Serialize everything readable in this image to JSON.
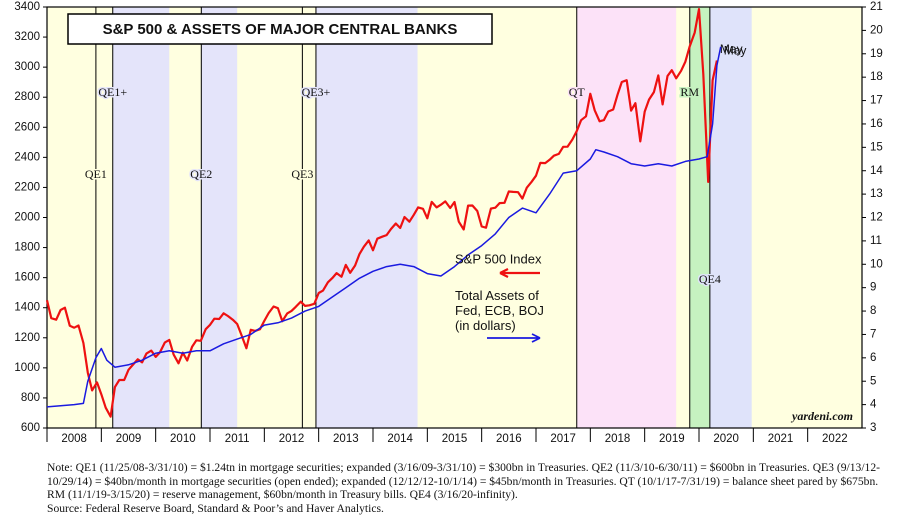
{
  "chart_data": {
    "type": "line",
    "title": "S&P 500 & ASSETS OF MAJOR CENTRAL BANKS",
    "xlim": [
      2008,
      2023
    ],
    "xticks": [
      2008,
      2009,
      2010,
      2011,
      2012,
      2013,
      2014,
      2015,
      2016,
      2017,
      2018,
      2019,
      2020,
      2021,
      2022
    ],
    "ylim": [
      600,
      3400
    ],
    "yticks": [
      600,
      800,
      1000,
      1200,
      1400,
      1600,
      1800,
      2000,
      2200,
      2400,
      2600,
      2800,
      3000,
      3200,
      3400
    ],
    "y2lim": [
      3,
      21
    ],
    "y2ticks": [
      3,
      4,
      5,
      6,
      7,
      8,
      9,
      10,
      11,
      12,
      13,
      14,
      15,
      16,
      17,
      18,
      19,
      20,
      21
    ],
    "background": "#ffffe0",
    "periods": [
      {
        "label": "QE1",
        "start": 2008.9
      },
      {
        "label": "QE1+",
        "start": 2009.21,
        "end": 2010.25,
        "color": "#e4e4fa"
      },
      {
        "label": "QE2",
        "start": 2010.84,
        "end": 2011.5,
        "color": "#e4e4fa"
      },
      {
        "label": "QE3",
        "start": 2012.7
      },
      {
        "label": "QE3+",
        "start": 2012.95,
        "end": 2014.82,
        "color": "#e4e4fa"
      },
      {
        "label": "QT",
        "start": 2017.75,
        "end": 2019.58,
        "color": "#fce2f8"
      },
      {
        "label": "RM",
        "start": 2019.83,
        "end": 2020.2,
        "color": "#c6f2c0"
      },
      {
        "label": "QE4",
        "start": 2020.2,
        "end": 2020.97,
        "color": "#dfe3fa"
      }
    ],
    "series": [
      {
        "name": "S&P 500 Index",
        "color": "#ee1111",
        "end_label": "May",
        "x": [
          2008,
          2008.08,
          2008.17,
          2008.25,
          2008.33,
          2008.42,
          2008.5,
          2008.58,
          2008.67,
          2008.75,
          2008.83,
          2008.92,
          2009,
          2009.08,
          2009.17,
          2009.25,
          2009.33,
          2009.42,
          2009.5,
          2009.58,
          2009.67,
          2009.75,
          2009.83,
          2009.92,
          2010,
          2010.08,
          2010.17,
          2010.25,
          2010.33,
          2010.42,
          2010.5,
          2010.58,
          2010.67,
          2010.75,
          2010.83,
          2010.92,
          2011,
          2011.08,
          2011.17,
          2011.25,
          2011.33,
          2011.42,
          2011.5,
          2011.58,
          2011.67,
          2011.75,
          2011.83,
          2011.92,
          2012,
          2012.08,
          2012.17,
          2012.25,
          2012.33,
          2012.42,
          2012.5,
          2012.58,
          2012.67,
          2012.75,
          2012.83,
          2012.92,
          2013,
          2013.08,
          2013.17,
          2013.25,
          2013.33,
          2013.42,
          2013.5,
          2013.58,
          2013.67,
          2013.75,
          2013.83,
          2013.92,
          2014,
          2014.08,
          2014.17,
          2014.25,
          2014.33,
          2014.42,
          2014.5,
          2014.58,
          2014.67,
          2014.75,
          2014.83,
          2014.92,
          2015,
          2015.08,
          2015.17,
          2015.25,
          2015.33,
          2015.42,
          2015.5,
          2015.58,
          2015.67,
          2015.75,
          2015.83,
          2015.92,
          2016,
          2016.08,
          2016.17,
          2016.25,
          2016.33,
          2016.42,
          2016.5,
          2016.58,
          2016.67,
          2016.75,
          2016.83,
          2016.92,
          2017,
          2017.08,
          2017.17,
          2017.25,
          2017.33,
          2017.42,
          2017.5,
          2017.58,
          2017.67,
          2017.75,
          2017.83,
          2017.92,
          2018,
          2018.08,
          2018.17,
          2018.25,
          2018.33,
          2018.42,
          2018.5,
          2018.58,
          2018.67,
          2018.75,
          2018.83,
          2018.92,
          2019,
          2019.08,
          2019.17,
          2019.25,
          2019.33,
          2019.42,
          2019.5,
          2019.58,
          2019.67,
          2019.75,
          2019.83,
          2019.92,
          2020,
          2020.08,
          2020.17,
          2020.25,
          2020.33
        ],
        "values": [
          1450,
          1330,
          1320,
          1385,
          1400,
          1280,
          1267,
          1282,
          1165,
          968,
          850,
          903,
          825,
          735,
          676,
          872,
          919,
          919,
          987,
          1020,
          1057,
          1036,
          1095,
          1115,
          1073,
          1104,
          1169,
          1186,
          1089,
          1030,
          1101,
          1049,
          1141,
          1183,
          1180,
          1257,
          1286,
          1327,
          1325,
          1363,
          1345,
          1320,
          1292,
          1218,
          1131,
          1253,
          1246,
          1257,
          1312,
          1365,
          1408,
          1397,
          1310,
          1362,
          1379,
          1406,
          1440,
          1412,
          1416,
          1426,
          1498,
          1514,
          1569,
          1597,
          1630,
          1606,
          1685,
          1632,
          1681,
          1756,
          1805,
          1848,
          1782,
          1859,
          1872,
          1883,
          1923,
          1960,
          1930,
          2003,
          1972,
          2018,
          2067,
          2058,
          1995,
          2104,
          2067,
          2085,
          2107,
          2063,
          2103,
          1972,
          1920,
          2079,
          2080,
          2043,
          1940,
          1932,
          2059,
          2065,
          2096,
          2098,
          2173,
          2170,
          2168,
          2126,
          2198,
          2238,
          2278,
          2363,
          2362,
          2384,
          2411,
          2423,
          2470,
          2471,
          2519,
          2575,
          2647,
          2673,
          2823,
          2713,
          2640,
          2648,
          2705,
          2718,
          2816,
          2901,
          2913,
          2711,
          2760,
          2506,
          2704,
          2784,
          2834,
          2945,
          2752,
          2941,
          2980,
          2926,
          2976,
          3037,
          3140,
          3230,
          3386,
          2954,
          2237,
          2912,
          3044
        ]
      },
      {
        "name": "Total Assets of Fed, ECB, BOJ (in dollars)",
        "color": "#1a1ae0",
        "axis": "y2",
        "end_label": "May",
        "x": [
          2008,
          2008.25,
          2008.5,
          2008.67,
          2008.75,
          2008.9,
          2009,
          2009.1,
          2009.25,
          2009.5,
          2009.75,
          2010,
          2010.25,
          2010.5,
          2010.75,
          2011,
          2011.25,
          2011.5,
          2011.75,
          2012,
          2012.25,
          2012.5,
          2012.75,
          2013,
          2013.25,
          2013.5,
          2013.75,
          2014,
          2014.25,
          2014.5,
          2014.75,
          2015,
          2015.25,
          2015.5,
          2015.75,
          2016,
          2016.25,
          2016.5,
          2016.75,
          2017,
          2017.25,
          2017.5,
          2017.75,
          2018,
          2018.1,
          2018.25,
          2018.5,
          2018.75,
          2019,
          2019.25,
          2019.5,
          2019.75,
          2020,
          2020.15,
          2020.25,
          2020.33,
          2020.4
        ],
        "values": [
          3.9,
          3.95,
          4.0,
          4.05,
          5.0,
          6.0,
          6.4,
          5.9,
          5.6,
          5.7,
          5.9,
          6.2,
          6.3,
          6.2,
          6.3,
          6.3,
          6.6,
          6.8,
          7.0,
          7.4,
          7.5,
          7.7,
          8.0,
          8.2,
          8.6,
          9.0,
          9.4,
          9.7,
          9.9,
          10.0,
          9.9,
          9.6,
          9.5,
          9.9,
          10.4,
          10.8,
          11.3,
          12.0,
          12.4,
          12.2,
          13.0,
          13.9,
          14.0,
          14.5,
          14.9,
          14.8,
          14.6,
          14.3,
          14.2,
          14.3,
          14.2,
          14.4,
          14.5,
          14.6,
          16.0,
          18.5,
          19.3
        ]
      }
    ],
    "watermark": "yardeni.com",
    "note": "Note: QE1 (11/25/08-3/31/10) = $1.24tn in mortgage securities; expanded (3/16/09-3/31/10) = $300bn in Treasuries. QE2 (11/3/10-6/30/11) = $600bn in Treasuries. QE3 (9/13/12-10/29/14) = $40bn/month in mortgage securities (open ended); expanded (12/12/12-10/1/14) = $45bn/month in Treasuries. QT (10/1/17-7/31/19) = balance sheet pared by $675bn. RM (11/1/19-3/15/20) = reserve management, $60bn/month in Treasury bills. QE4 (3/16/20-infinity).",
    "source": "Source: Federal Reserve Board, Standard & Poor’s and Haver Analytics."
  }
}
